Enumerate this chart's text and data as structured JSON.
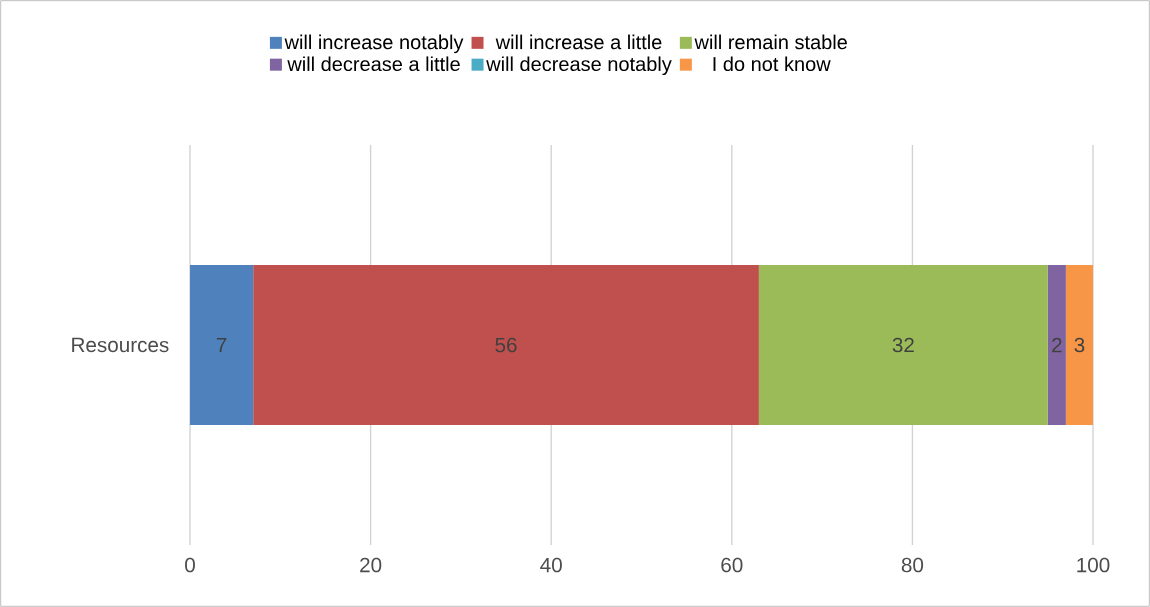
{
  "chart_data": {
    "type": "bar",
    "orientation": "horizontal",
    "stacked": true,
    "categories": [
      "Resources"
    ],
    "series": [
      {
        "name": "will increase notably",
        "color": "#4f81bd",
        "values": [
          7
        ],
        "value_labels": [
          "7"
        ]
      },
      {
        "name": "will increase a little",
        "color": "#c0504d",
        "values": [
          56
        ],
        "value_labels": [
          "56"
        ]
      },
      {
        "name": "will remain stable",
        "color": "#9bbb59",
        "values": [
          32
        ],
        "value_labels": [
          "32"
        ]
      },
      {
        "name": "will decrease a little",
        "color": "#8064a2",
        "values": [
          2
        ],
        "value_labels": [
          "2"
        ]
      },
      {
        "name": "will decrease notably",
        "color": "#4bacc6",
        "values": [
          0
        ],
        "value_labels": [
          null
        ]
      },
      {
        "name": "I do not know",
        "color": "#f79646",
        "values": [
          3
        ],
        "value_labels": [
          "3"
        ]
      }
    ],
    "xlim": [
      0,
      100
    ],
    "xticks": [
      0,
      20,
      40,
      60,
      80,
      100
    ],
    "grid": "x",
    "legend": "top"
  }
}
